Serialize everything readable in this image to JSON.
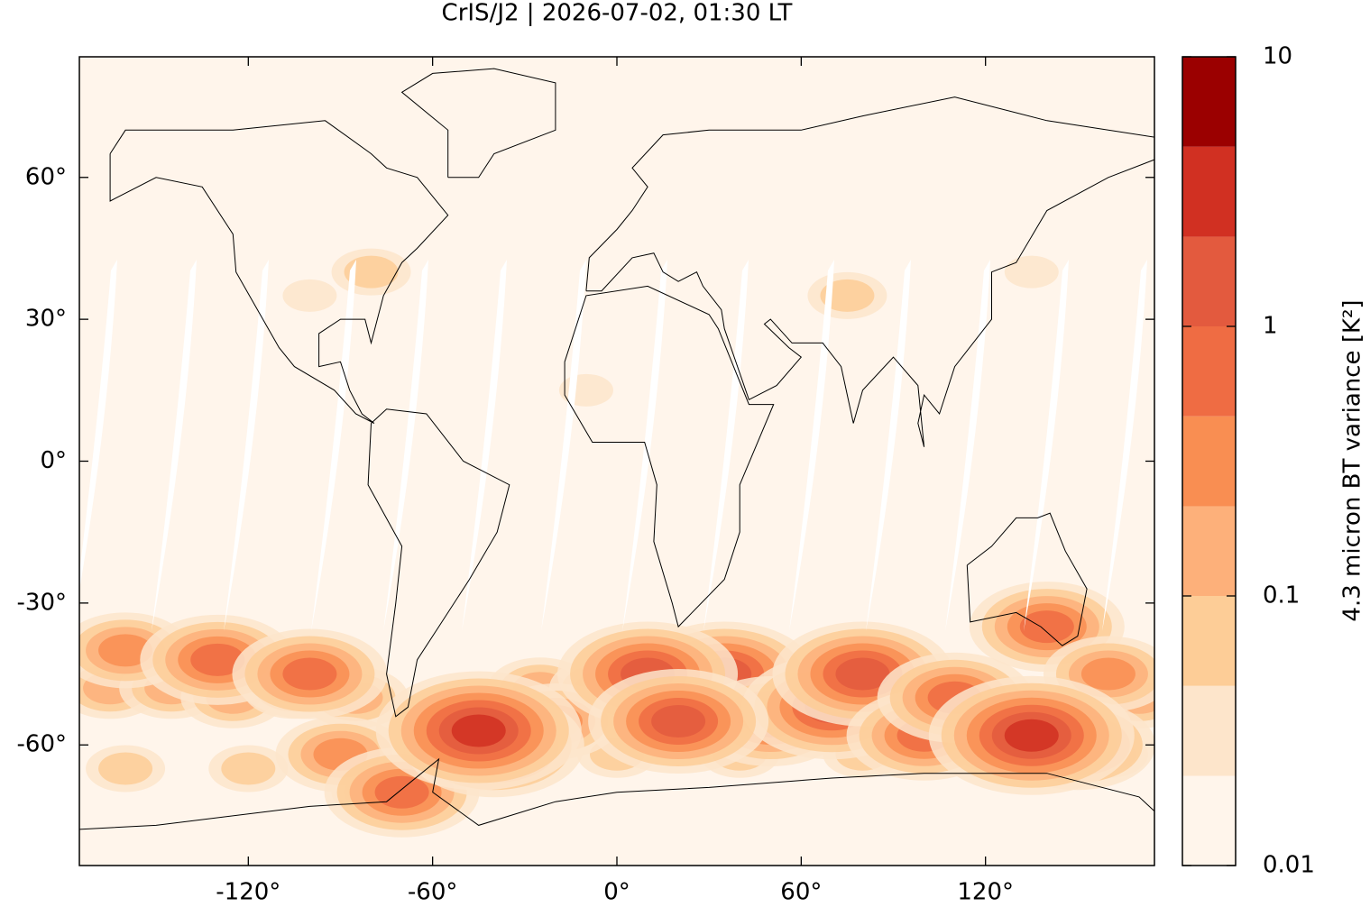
{
  "chart_data": {
    "type": "map",
    "title": "CrIS/J2 | 2026-07-02, 01:30 LT",
    "xlim": [
      -175,
      175
    ],
    "ylim": [
      -85.5,
      85.5
    ],
    "xticks": [
      {
        "value": -120,
        "label": "-120°"
      },
      {
        "value": -60,
        "label": "-60°"
      },
      {
        "value": 0,
        "label": "0°"
      },
      {
        "value": 60,
        "label": "60°"
      },
      {
        "value": 120,
        "label": "120°"
      }
    ],
    "yticks": [
      {
        "value": -60,
        "label": "-60°"
      },
      {
        "value": -30,
        "label": "-30°"
      },
      {
        "value": 0,
        "label": "0°"
      },
      {
        "value": 30,
        "label": "30°"
      },
      {
        "value": 60,
        "label": "60°"
      }
    ],
    "colorbar": {
      "label": "4.3 micron BT variance [K²]",
      "log": true,
      "lim": [
        0.01,
        10
      ],
      "ticks": [
        0.01,
        0.1,
        1,
        10
      ],
      "levels": [
        0.01,
        0.0215,
        0.0464,
        0.1,
        0.215,
        0.464,
        1,
        2.15,
        4.64,
        10
      ],
      "colors": [
        "#fff5eb",
        "#fde5cb",
        "#fdcd97",
        "#fdb07a",
        "#f98e52",
        "#ef6c43",
        "#e35a3e",
        "#d13022",
        "#9b0000"
      ]
    },
    "field": [
      {
        "lon": -80,
        "lat": 40,
        "value": 0.05
      },
      {
        "lon": -100,
        "lat": 35,
        "value": 0.04
      },
      {
        "lon": 75,
        "lat": 35,
        "value": 0.05
      },
      {
        "lon": 135,
        "lat": 40,
        "value": 0.04
      },
      {
        "lon": -10,
        "lat": 15,
        "value": 0.04
      },
      {
        "lon": -165,
        "lat": -48,
        "value": 0.15
      },
      {
        "lon": -145,
        "lat": -48,
        "value": 0.15
      },
      {
        "lon": -125,
        "lat": -50,
        "value": 0.15
      },
      {
        "lon": -105,
        "lat": -48,
        "value": 0.15
      },
      {
        "lon": -85,
        "lat": -50,
        "value": 0.15
      },
      {
        "lon": -25,
        "lat": -48,
        "value": 0.15
      },
      {
        "lon": -5,
        "lat": -48,
        "value": 0.15
      },
      {
        "lon": 15,
        "lat": -48,
        "value": 0.15
      },
      {
        "lon": 35,
        "lat": -48,
        "value": 0.15
      },
      {
        "lon": 55,
        "lat": -48,
        "value": 0.15
      },
      {
        "lon": 75,
        "lat": -48,
        "value": 0.15
      },
      {
        "lon": 95,
        "lat": -50,
        "value": 0.15
      },
      {
        "lon": 115,
        "lat": -50,
        "value": 0.15
      },
      {
        "lon": 155,
        "lat": -50,
        "value": 0.15
      },
      {
        "lon": 170,
        "lat": -50,
        "value": 0.15
      },
      {
        "lon": -160,
        "lat": -65,
        "value": 0.08
      },
      {
        "lon": -120,
        "lat": -65,
        "value": 0.08
      },
      {
        "lon": -80,
        "lat": -70,
        "value": 0.08
      },
      {
        "lon": 0,
        "lat": -62,
        "value": 0.08
      },
      {
        "lon": 40,
        "lat": -62,
        "value": 0.08
      },
      {
        "lon": 80,
        "lat": -62,
        "value": 0.08
      },
      {
        "lon": 120,
        "lat": -62,
        "value": 0.08
      },
      {
        "lon": 160,
        "lat": -62,
        "value": 0.08
      },
      {
        "lon": -160,
        "lat": -40,
        "value": 0.3
      },
      {
        "lon": -130,
        "lat": -42,
        "value": 0.6
      },
      {
        "lon": -100,
        "lat": -45,
        "value": 0.5
      },
      {
        "lon": -90,
        "lat": -62,
        "value": 0.3
      },
      {
        "lon": -70,
        "lat": -70,
        "value": 0.8
      },
      {
        "lon": -20,
        "lat": -55,
        "value": 0.4
      },
      {
        "lon": 140,
        "lat": -35,
        "value": 0.5
      },
      {
        "lon": 160,
        "lat": -45,
        "value": 0.3
      },
      {
        "lon": 35,
        "lat": -45,
        "value": 1
      },
      {
        "lon": 50,
        "lat": -55,
        "value": 0.8
      },
      {
        "lon": 70,
        "lat": -52,
        "value": 1
      },
      {
        "lon": 80,
        "lat": -45,
        "value": 1.2
      },
      {
        "lon": 100,
        "lat": -58,
        "value": 0.7
      },
      {
        "lon": 110,
        "lat": -50,
        "value": 0.8
      },
      {
        "lon": 150,
        "lat": -60,
        "value": 0.8
      },
      {
        "lon": -40,
        "lat": -60,
        "value": 1
      },
      {
        "lon": 10,
        "lat": -45,
        "value": 1.5
      },
      {
        "lon": 20,
        "lat": -55,
        "value": 1.5
      },
      {
        "lon": -45,
        "lat": -57,
        "value": 3
      },
      {
        "lon": 135,
        "lat": -58,
        "value": 3
      }
    ]
  }
}
